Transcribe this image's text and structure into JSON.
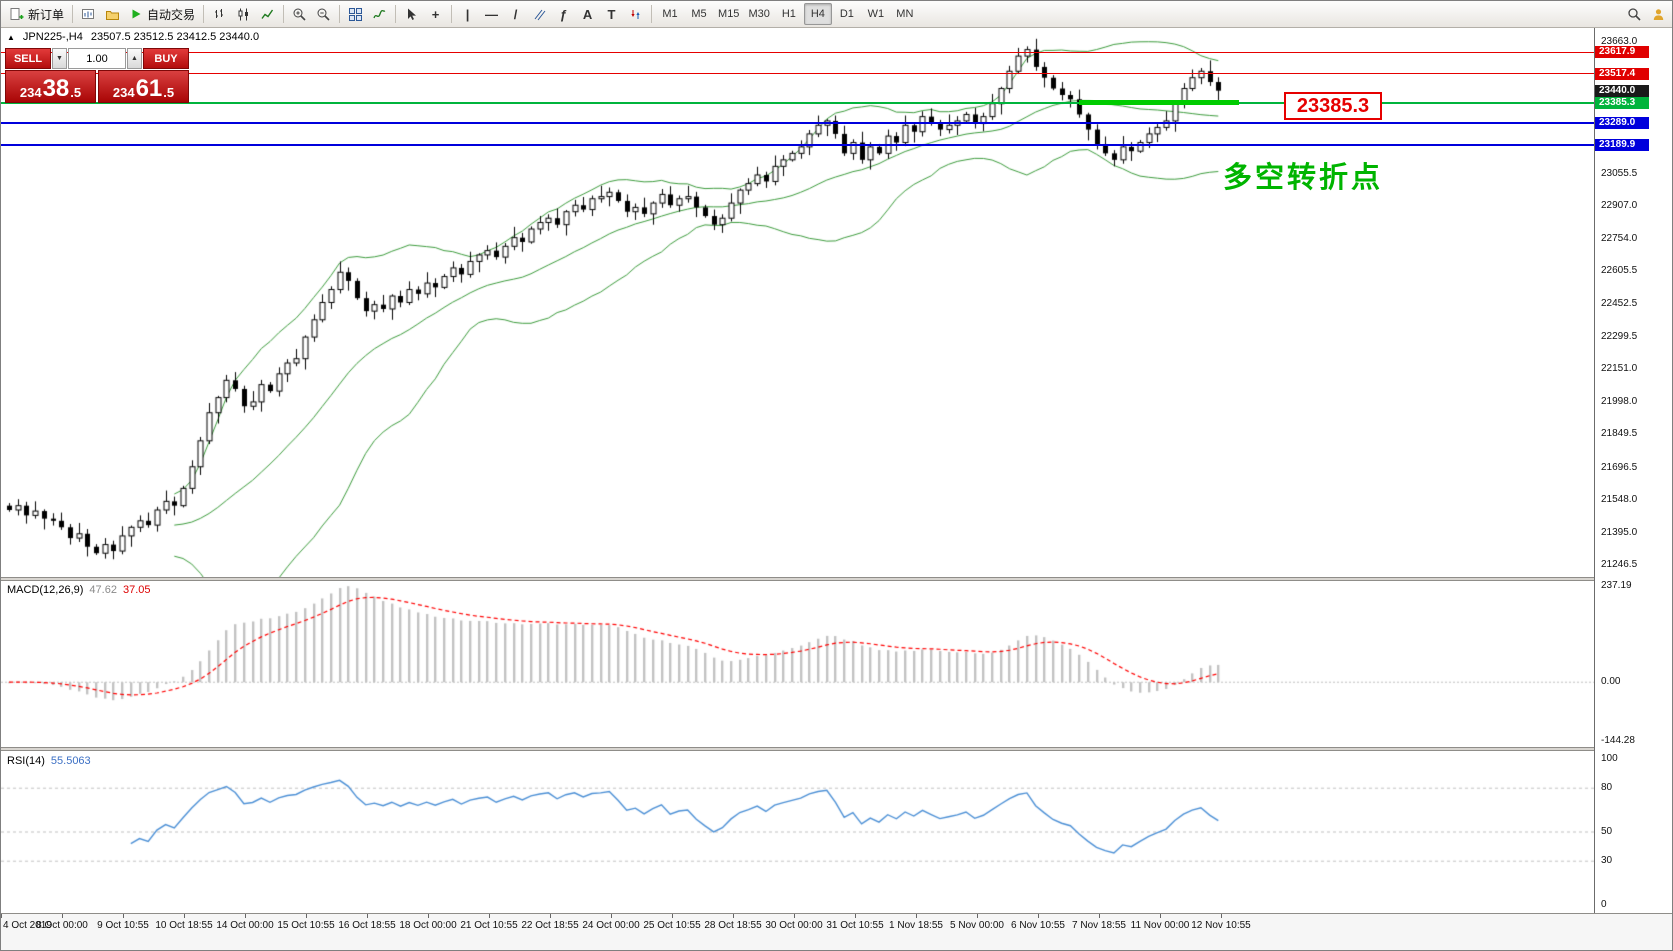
{
  "toolbar": {
    "new_order_label": "新订单",
    "autotrading_label": "自动交易",
    "timeframes": [
      "M1",
      "M5",
      "M15",
      "M30",
      "H1",
      "H4",
      "D1",
      "W1",
      "MN"
    ],
    "active_timeframe": "H4",
    "tool_glyphs": {
      "vline": "|",
      "hline": "—",
      "trend": "/",
      "fibo": "ƒ",
      "text": "A",
      "label": "T",
      "crosshair": "+"
    }
  },
  "chart": {
    "symbol_title": "JPN225-,H4",
    "ohlc": "23507.5 23512.5 23412.5 23440.0"
  },
  "one_click": {
    "sell_label": "SELL",
    "buy_label": "BUY",
    "volume": "1.00",
    "sell_price": "23438.5",
    "buy_price": "23461.5"
  },
  "annotations": {
    "price_label": "23385.3",
    "turning_point": "多空转折点"
  },
  "macd": {
    "name": "MACD(12,26,9)",
    "value_main": "47.62",
    "value_signal": "37.05",
    "axis_labels": [
      {
        "t": "237.19",
        "v": 237.19
      },
      {
        "t": "0.00",
        "v": 0
      },
      {
        "t": "-144.28",
        "v": -144.28
      }
    ]
  },
  "rsi": {
    "name": "RSI(14)",
    "value": "55.5063",
    "axis_labels": [
      {
        "t": "100",
        "v": 100
      },
      {
        "t": "80",
        "v": 80
      },
      {
        "t": "50",
        "v": 50
      },
      {
        "t": "30",
        "v": 30
      },
      {
        "t": "0",
        "v": 0
      }
    ],
    "levels": [
      80,
      50,
      30
    ]
  },
  "price_axis": {
    "grid_labels": [
      {
        "t": "23663.0",
        "p": 23663.0
      },
      {
        "t": "23055.5",
        "p": 23055.5
      },
      {
        "t": "22907.0",
        "p": 22907.0
      },
      {
        "t": "22754.0",
        "p": 22754.0
      },
      {
        "t": "22605.5",
        "p": 22605.5
      },
      {
        "t": "22452.5",
        "p": 22452.5
      },
      {
        "t": "22299.5",
        "p": 22299.5
      },
      {
        "t": "22151.0",
        "p": 22151.0
      },
      {
        "t": "21998.0",
        "p": 21998.0
      },
      {
        "t": "21849.5",
        "p": 21849.5
      },
      {
        "t": "21696.5",
        "p": 21696.5
      },
      {
        "t": "21548.0",
        "p": 21548.0
      },
      {
        "t": "21395.0",
        "p": 21395.0
      },
      {
        "t": "21246.5",
        "p": 21246.5
      }
    ],
    "tags": [
      {
        "t": "23617.9",
        "p": 23617.9,
        "bg": "#e00000"
      },
      {
        "t": "23517.4",
        "p": 23517.4,
        "bg": "#e00000"
      },
      {
        "t": "23440.0",
        "p": 23440.0,
        "bg": "#1a1a1a"
      },
      {
        "t": "23385.3",
        "p": 23385.3,
        "bg": "#00b43c"
      },
      {
        "t": "23289.0",
        "p": 23289.0,
        "bg": "#0000dc"
      },
      {
        "t": "23189.9",
        "p": 23189.9,
        "bg": "#0000dc"
      }
    ]
  },
  "hlines": [
    {
      "p": 23617.9,
      "color": "#e60000",
      "w": 1
    },
    {
      "p": 23517.4,
      "color": "#e60000",
      "w": 1
    },
    {
      "p": 23385.3,
      "color": "#00b43c",
      "w": 2
    },
    {
      "p": 23289.0,
      "color": "#0000dc",
      "w": 2
    },
    {
      "p": 23189.9,
      "color": "#0000dc",
      "w": 2
    }
  ],
  "green_segment": {
    "price": 23385.3,
    "from_bar": 123,
    "to_bar": 141.4
  },
  "colors": {
    "bull": "#ffffff",
    "bear": "#000000",
    "wick": "#000000",
    "band": "#3a9a3a",
    "macd_hist": "#c2c2c2",
    "macd_signal": "#ff0000",
    "rsi_line": "#4b8fd5",
    "grid_dash": "#c0c0c0",
    "accent_red": "#cc0505"
  },
  "chart_data": {
    "type": "candlestick",
    "symbol": "JPN225-",
    "timeframe": "H4",
    "title": "JPN225-,H4",
    "price_range": [
      21190,
      23730
    ],
    "open_first": 21520,
    "closes": [
      21500,
      21520,
      21475,
      21495,
      21460,
      21450,
      21420,
      21370,
      21390,
      21330,
      21300,
      21340,
      21310,
      21380,
      21420,
      21450,
      21430,
      21500,
      21540,
      21520,
      21600,
      21700,
      21820,
      21950,
      22020,
      22100,
      22060,
      21980,
      22000,
      22080,
      22050,
      22130,
      22180,
      22200,
      22300,
      22380,
      22460,
      22520,
      22600,
      22560,
      22480,
      22420,
      22450,
      22430,
      22490,
      22460,
      22520,
      22500,
      22550,
      22530,
      22580,
      22620,
      22590,
      22650,
      22680,
      22700,
      22670,
      22720,
      22760,
      22740,
      22800,
      22830,
      22850,
      22820,
      22880,
      22910,
      22890,
      22940,
      22950,
      22970,
      22930,
      22880,
      22900,
      22870,
      22920,
      22960,
      22910,
      22940,
      22950,
      22900,
      22860,
      22820,
      22850,
      22920,
      22980,
      23010,
      23050,
      23020,
      23090,
      23120,
      23150,
      23180,
      23240,
      23280,
      23300,
      23240,
      23150,
      23200,
      23120,
      23180,
      23150,
      23230,
      23200,
      23280,
      23250,
      23320,
      23290,
      23260,
      23280,
      23300,
      23330,
      23290,
      23320,
      23380,
      23450,
      23530,
      23600,
      23630,
      23550,
      23500,
      23450,
      23420,
      23400,
      23330,
      23260,
      23190,
      23150,
      23120,
      23180,
      23160,
      23200,
      23240,
      23270,
      23300,
      23380,
      23450,
      23500,
      23530,
      23480,
      23440
    ],
    "wick_pattern": [
      12,
      30,
      18,
      45,
      8,
      25,
      38,
      15,
      50,
      22
    ],
    "indicators": {
      "bollinger_period": 20,
      "bollinger_dev": 2,
      "macd": [
        12,
        26,
        9
      ],
      "rsi_period": 14
    },
    "time_labels": [
      "4 Oct 2019",
      "8 Oct 00:00",
      "9 Oct 10:55",
      "10 Oct 18:55",
      "14 Oct 00:00",
      "15 Oct 10:55",
      "16 Oct 18:55",
      "18 Oct 00:00",
      "21 Oct 10:55",
      "22 Oct 18:55",
      "24 Oct 00:00",
      "25 Oct 10:55",
      "28 Oct 18:55",
      "30 Oct 00:00",
      "31 Oct 10:55",
      "1 Nov 18:55",
      "5 Nov 00:00",
      "6 Nov 10:55",
      "7 Nov 18:55",
      "11 Nov 00:00",
      "12 Nov 10:55"
    ]
  }
}
